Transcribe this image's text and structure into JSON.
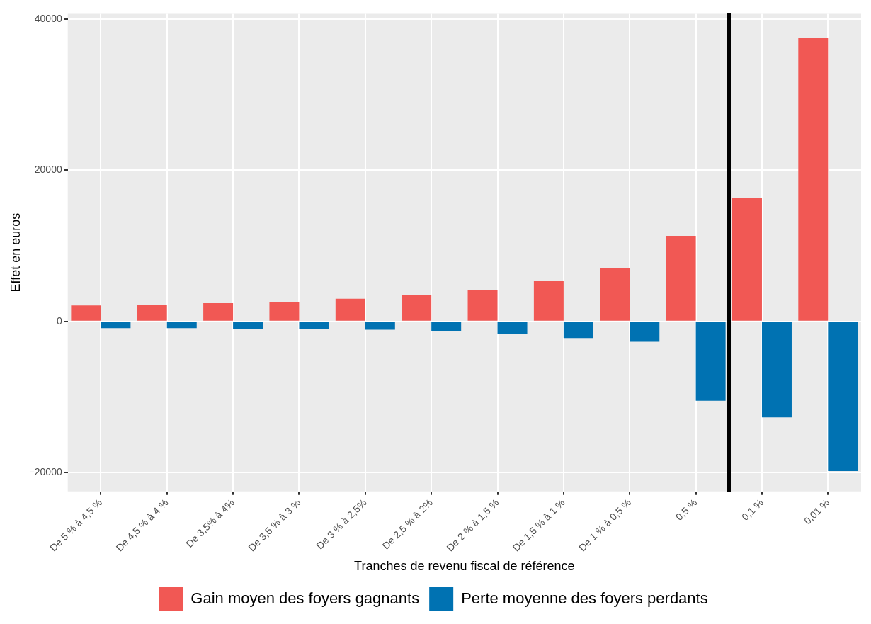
{
  "chart_data": {
    "type": "bar",
    "xlabel": "Tranches de revenu fiscal de référence",
    "ylabel": "Effet en euros",
    "categories": [
      "De 5 % à 4,5 %",
      "De 4,5 % à 4 %",
      "De 3,5% à 4%",
      "De 3,5 % à 3 %",
      "De 3 % à 2,5%",
      "De 2,5 % à 2%",
      "De 2 % à 1,5 %",
      "De 1,5 % à 1 %",
      "De 1 % à 0,5 %",
      "0,5 %",
      "0,1 %",
      "0,01 %"
    ],
    "series": [
      {
        "name": "Gain moyen des foyers gagnants",
        "color": "#f15854",
        "values": [
          2100,
          2200,
          2400,
          2600,
          3000,
          3500,
          4100,
          5300,
          7000,
          11300,
          16300,
          37500
        ]
      },
      {
        "name": "Perte moyenne des foyers perdants",
        "color": "#0072b2",
        "values": [
          -900,
          -900,
          -1000,
          -1000,
          -1100,
          -1300,
          -1700,
          -2200,
          -2700,
          -10500,
          -12700,
          -19800
        ]
      }
    ],
    "ylim": [
      -22500,
      40700
    ],
    "yticks": [
      -20000,
      0,
      20000,
      40000
    ],
    "grid": true,
    "legend": "bottom"
  }
}
